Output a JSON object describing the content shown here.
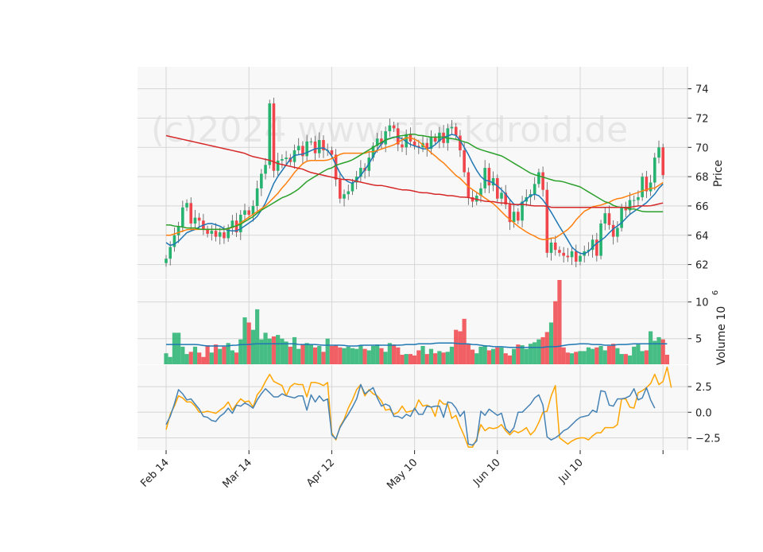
{
  "watermark": "(c)2024 www.stockdroid.de",
  "colors": {
    "up": "#26b370",
    "down": "#f0454a",
    "panel_bg": "#f8f8f8",
    "grid": "#d6d6d6",
    "ma_fast": "#1f77b4",
    "ma_mid": "#ff7f0e",
    "ma_slow": "#2ca02c",
    "ma_long": "#d62728",
    "vol_ma": "#1f77b4",
    "osc_a": "#4682b4",
    "osc_b": "#ffa500"
  },
  "chart_data": [
    {
      "type": "candlestick",
      "ylabel": "Price",
      "ylim": [
        61,
        75.5
      ],
      "yticks": [
        "62",
        "64",
        "66",
        "68",
        "70",
        "72",
        "74"
      ],
      "xticks": [
        "Feb 14",
        "Mar 14",
        "Apr 12",
        "May 10",
        "Jun 10",
        "Jul 10",
        ""
      ],
      "grid": true,
      "close": [
        62.4,
        63.2,
        64.0,
        64.6,
        65.9,
        66.2,
        64.8,
        65.2,
        65.0,
        64.4,
        64.1,
        64.3,
        63.9,
        64.2,
        63.8,
        64.5,
        65.0,
        64.2,
        65.4,
        65.7,
        65.4,
        66.0,
        67.2,
        68.2,
        68.8,
        73.0,
        68.4,
        69.1,
        69.2,
        69.3,
        69.0,
        69.8,
        70.1,
        69.4,
        70.4,
        70.4,
        69.6,
        70.5,
        69.8,
        69.8,
        69.5,
        67.8,
        66.5,
        66.8,
        67.0,
        67.6,
        68.0,
        68.6,
        68.4,
        69.3,
        70.1,
        70.6,
        70.2,
        71.1,
        71.5,
        71.3,
        70.2,
        70.0,
        70.9,
        70.4,
        70.1,
        70.0,
        70.3,
        69.9,
        70.7,
        70.4,
        71.0,
        70.3,
        71.3,
        71.4,
        70.8,
        69.8,
        68.3,
        66.6,
        66.3,
        66.7,
        67.2,
        68.6,
        67.4,
        67.9,
        66.5,
        66.9,
        66.1,
        64.9,
        65.6,
        65.0,
        66.3,
        66.6,
        66.8,
        67.5,
        68.3,
        67.1,
        62.8,
        63.5,
        63.0,
        62.8,
        62.6,
        62.5,
        62.9,
        62.2,
        62.6,
        62.9,
        63.0,
        63.7,
        62.6,
        64.8,
        65.5,
        64.7,
        63.9,
        64.5,
        65.9,
        65.7,
        66.4,
        66.4,
        66.6,
        68.0,
        67.0,
        67.6,
        69.3,
        70.0,
        68.1
      ],
      "series": [
        {
          "name": "",
          "values": [
            63.5,
            63.3,
            63.4,
            63.6,
            63.9,
            64.2,
            64.3,
            64.4,
            64.6,
            64.7,
            64.8,
            64.8,
            64.7,
            64.6,
            64.4,
            64.3,
            64.3,
            64.3,
            64.5,
            64.7,
            64.9,
            65.1,
            65.4,
            65.9,
            66.4,
            67.2,
            67.8,
            68.2,
            68.6,
            69.0,
            69.4,
            69.5,
            69.5,
            69.6,
            69.7,
            69.9,
            69.9,
            70.0,
            69.9,
            69.6,
            69.0,
            68.4,
            67.9,
            67.7,
            67.5,
            67.7,
            68.0,
            68.4,
            68.8,
            69.3,
            69.8,
            70.2,
            70.5,
            70.6,
            70.7,
            70.7,
            70.6,
            70.4,
            70.2,
            70.1,
            70.0,
            69.9,
            69.9,
            70.0,
            70.2,
            70.5,
            70.7,
            70.8,
            70.9,
            70.8,
            70.4,
            69.9,
            69.4,
            68.8,
            68.3,
            67.9,
            67.7,
            67.7,
            67.5,
            67.3,
            67.0,
            66.7,
            66.3,
            66.0,
            66.1,
            66.3,
            66.6,
            66.8,
            66.8,
            66.6,
            66.2,
            65.8,
            65.3,
            64.8,
            64.3,
            63.9,
            63.3,
            63.0,
            62.8,
            62.7,
            62.8,
            63.1,
            63.4,
            63.6,
            63.8,
            64.1,
            64.4,
            64.6,
            64.8,
            65.1,
            65.4,
            65.6,
            65.8,
            66.0,
            66.2,
            66.5,
            66.8,
            67.2,
            67.5
          ]
        },
        {
          "name": "",
          "values": [
            64.0,
            64.0,
            64.1,
            64.2,
            64.3,
            64.4,
            64.4,
            64.4,
            64.4,
            64.4,
            64.4,
            64.4,
            64.4,
            64.4,
            64.4,
            64.5,
            64.6,
            64.8,
            65.0,
            65.2,
            65.4,
            65.6,
            65.8,
            66.0,
            66.3,
            66.6,
            66.9,
            67.3,
            67.6,
            68.0,
            68.4,
            68.7,
            69.0,
            69.1,
            69.1,
            69.1,
            69.1,
            69.1,
            69.2,
            69.3,
            69.5,
            69.6,
            69.6,
            69.6,
            69.6,
            69.6,
            69.6,
            69.7,
            69.7,
            69.8,
            69.9,
            70.0,
            70.1,
            70.2,
            70.4,
            70.6,
            70.7,
            70.6,
            70.5,
            70.3,
            70.0,
            69.7,
            69.5,
            69.2,
            69.0,
            68.7,
            68.4,
            68.1,
            67.9,
            67.6,
            67.3,
            67.1,
            66.9,
            66.7,
            66.5,
            66.3,
            66.1,
            65.8,
            65.5,
            65.2,
            65.0,
            64.7,
            64.5,
            64.3,
            64.1,
            64.0,
            63.8,
            63.7,
            63.7,
            63.8,
            63.8,
            64.0,
            64.2,
            64.4,
            64.7,
            65.1,
            65.4,
            65.7,
            65.8,
            66.0,
            66.0,
            66.1,
            66.2,
            66.3,
            66.5,
            66.5,
            66.6,
            66.7,
            66.8,
            66.9,
            67.0,
            67.1,
            67.2,
            67.2,
            67.4,
            67.6
          ]
        },
        {
          "name": "",
          "values": [
            64.7,
            64.7,
            64.6,
            64.6,
            64.5,
            64.5,
            64.5,
            64.4,
            64.4,
            64.4,
            64.4,
            64.4,
            64.4,
            64.5,
            64.6,
            64.7,
            64.9,
            65.1,
            65.3,
            65.6,
            65.8,
            66.0,
            66.2,
            66.4,
            66.6,
            66.7,
            66.9,
            67.1,
            67.4,
            67.7,
            67.9,
            68.1,
            68.3,
            68.5,
            68.6,
            68.8,
            68.9,
            69.0,
            69.1,
            69.3,
            69.5,
            69.7,
            69.9,
            70.1,
            70.3,
            70.5,
            70.6,
            70.7,
            70.8,
            70.8,
            70.9,
            70.9,
            70.8,
            70.8,
            70.7,
            70.7,
            70.7,
            70.7,
            70.6,
            70.6,
            70.5,
            70.4,
            70.3,
            70.1,
            69.9,
            69.8,
            69.7,
            69.6,
            69.5,
            69.4,
            69.2,
            69.0,
            68.8,
            68.6,
            68.4,
            68.2,
            68.1,
            68.0,
            67.9,
            67.8,
            67.7,
            67.7,
            67.6,
            67.5,
            67.4,
            67.3,
            67.1,
            66.9,
            66.7,
            66.5,
            66.3,
            66.2,
            66.0,
            65.9,
            65.9,
            65.8,
            65.8,
            65.7,
            65.6,
            65.6,
            65.6,
            65.6,
            65.6
          ]
        },
        {
          "name": "",
          "values": [
            70.8,
            70.7,
            70.6,
            70.5,
            70.4,
            70.3,
            70.2,
            70.1,
            70.0,
            69.9,
            69.8,
            69.7,
            69.6,
            69.4,
            69.3,
            69.2,
            69.1,
            68.9,
            68.8,
            68.7,
            68.6,
            68.5,
            68.3,
            68.2,
            68.1,
            68.0,
            67.9,
            67.8,
            67.8,
            67.7,
            67.6,
            67.5,
            67.4,
            67.4,
            67.3,
            67.2,
            67.1,
            67.1,
            67.0,
            66.9,
            66.9,
            66.8,
            66.8,
            66.7,
            66.7,
            66.6,
            66.6,
            66.5,
            66.4,
            66.3,
            66.3,
            66.2,
            66.2,
            66.1,
            66.1,
            66.1,
            66.0,
            66.0,
            66.0,
            65.9,
            65.9,
            65.9,
            65.9,
            65.9,
            65.9,
            65.9,
            65.9,
            65.9,
            65.9,
            65.9,
            65.9,
            65.9,
            66.0,
            66.0,
            66.0,
            66.1,
            66.2
          ]
        }
      ]
    },
    {
      "type": "bar",
      "ylabel": "Volume",
      "ylabel_exponent": "10",
      "ylabel_exponent_power": "6",
      "ylim": [
        1.5,
        13
      ],
      "yticks": [
        "5",
        "10"
      ],
      "values": [
        3.0,
        2.5,
        5.8,
        5.8,
        3.9,
        2.9,
        3.2,
        3.9,
        3.1,
        2.5,
        4.1,
        3.1,
        4.2,
        3.6,
        3.9,
        4.4,
        3.4,
        3.1,
        4.9,
        7.9,
        7.2,
        6.2,
        9.0,
        4.9,
        5.8,
        5.0,
        5.3,
        5.5,
        5.0,
        4.6,
        3.9,
        5.2,
        3.6,
        4.2,
        4.4,
        4.2,
        3.8,
        4.0,
        3.2,
        5.0,
        4.0,
        4.1,
        3.8,
        3.7,
        3.9,
        3.7,
        3.6,
        4.1,
        3.6,
        3.4,
        4.0,
        4.2,
        3.7,
        3.2,
        4.4,
        4.2,
        3.8,
        2.8,
        2.9,
        2.9,
        2.7,
        3.4,
        4.0,
        2.9,
        3.6,
        3.0,
        3.3,
        3.1,
        3.2,
        3.9,
        6.2,
        6.0,
        7.7,
        4.3,
        3.5,
        3.0,
        3.9,
        4.1,
        3.4,
        3.6,
        3.8,
        3.8,
        3.0,
        2.7,
        3.6,
        4.2,
        4.1,
        3.6,
        4.3,
        4.5,
        4.9,
        5.2,
        5.9,
        7.2,
        10.1,
        13.0,
        3.8,
        3.1,
        3.0,
        3.2,
        3.3,
        3.3,
        3.8,
        3.6,
        3.8,
        4.0,
        3.4,
        4.0,
        4.3,
        3.7,
        2.9,
        2.9,
        2.7,
        3.9,
        4.2,
        3.3,
        3.4,
        6.0,
        4.7,
        5.2,
        4.9,
        2.8
      ],
      "series": [
        {
          "name": "",
          "values": [
            4.2,
            4.2,
            4.2,
            4.2,
            4.2,
            4.2,
            4.2,
            4.2,
            4.1,
            4.0,
            4.0,
            4.0,
            4.0,
            4.0,
            4.0,
            4.1,
            4.1,
            4.2,
            4.2,
            4.2,
            4.3,
            4.3,
            4.3,
            4.3,
            4.3,
            4.3,
            4.3,
            4.3,
            4.3,
            4.3,
            4.2,
            4.2,
            4.2,
            4.2,
            4.2,
            4.1,
            4.1,
            4.1,
            4.1,
            4.1,
            4.1,
            4.0,
            4.0,
            4.0,
            4.1,
            4.1,
            4.1,
            4.1,
            4.1,
            4.1,
            4.1,
            4.1,
            4.1,
            4.1,
            4.2,
            4.2,
            4.2,
            4.3,
            4.3,
            4.3,
            4.3,
            4.4,
            4.4,
            4.4,
            4.4,
            4.4,
            4.3,
            4.3,
            4.3,
            4.2,
            4.2,
            4.1,
            4.0,
            4.0,
            3.9,
            3.9,
            3.9,
            3.8,
            3.8,
            3.8,
            3.8,
            3.8,
            3.8,
            3.8,
            3.8,
            3.8,
            3.9,
            3.9,
            3.9,
            4.0,
            4.1,
            4.2,
            4.2,
            4.3,
            4.3,
            4.3,
            4.2,
            4.2,
            4.2,
            4.1,
            4.1,
            4.1,
            4.2,
            4.2,
            4.2,
            4.3,
            4.3,
            4.3,
            4.3,
            4.3,
            4.3,
            4.3,
            4.3,
            4.3
          ]
        }
      ]
    },
    {
      "type": "line",
      "ylim": [
        -3.7,
        4.6
      ],
      "yticks": [
        "−2.5",
        "0.0",
        "2.5"
      ],
      "series": [
        {
          "name": "",
          "values": [
            -1.2,
            -0.4,
            0.8,
            2.2,
            1.8,
            1.2,
            1.3,
            0.8,
            0.3,
            -0.4,
            -0.5,
            -0.8,
            -0.9,
            -0.4,
            -0.1,
            0.4,
            -0.1,
            0.7,
            0.6,
            0.9,
            0.7,
            0.4,
            1.2,
            1.8,
            2.3,
            1.9,
            1.5,
            1.5,
            1.8,
            1.6,
            1.5,
            1.4,
            1.6,
            1.6,
            0.2,
            1.7,
            1.0,
            1.6,
            1.1,
            1.3,
            -2.2,
            -2.6,
            -1.5,
            -0.8,
            -0.2,
            0.5,
            1.3,
            2.7,
            1.8,
            2.1,
            2.4,
            1.4,
            0.6,
            0.8,
            0.6,
            -0.4,
            -0.4,
            -0.6,
            -0.2,
            -0.4,
            0.4,
            -0.2,
            -0.2,
            0.6,
            0.5,
            0.6,
            0.6,
            -0.5,
            1.0,
            0.9,
            0.4,
            -0.4,
            0.1,
            -3.1,
            -3.2,
            -2.8,
            0.1,
            -0.3,
            0.3,
            0.0,
            -0.3,
            -0.1,
            -1.6,
            -2.0,
            -1.5,
            0.0,
            0.0,
            0.4,
            0.8,
            1.4,
            1.7,
            0.7,
            -2.4,
            -2.7,
            -2.5,
            -2.2,
            -1.8,
            -1.6,
            -1.2,
            -0.8,
            -0.5,
            -0.4,
            -0.3,
            0.2,
            0.0,
            2.1,
            2.0,
            0.7,
            0.6,
            1.3,
            1.3,
            1.4,
            1.6,
            2.3,
            1.2,
            1.4,
            2.4,
            1.2,
            0.4
          ]
        },
        {
          "name": "",
          "values": [
            -1.7,
            -0.2,
            0.6,
            1.6,
            1.4,
            1.0,
            1.0,
            0.6,
            0.0,
            0.0,
            0.1,
            0.0,
            -0.1,
            0.2,
            0.5,
            1.0,
            0.2,
            0.8,
            1.3,
            1.0,
            1.1,
            0.5,
            1.7,
            2.2,
            3.0,
            3.7,
            3.0,
            2.8,
            2.6,
            1.6,
            2.5,
            2.8,
            2.7,
            2.7,
            1.5,
            2.9,
            2.9,
            2.8,
            2.6,
            2.9,
            -2.0,
            -2.7,
            -1.4,
            -0.7,
            0.4,
            1.2,
            2.2,
            2.7,
            1.6,
            2.2,
            1.8,
            1.6,
            1.1,
            0.2,
            0.3,
            -0.2,
            0.0,
            0.6,
            0.0,
            0.1,
            0.2,
            1.2,
            0.6,
            0.7,
            0.5,
            -0.4,
            1.2,
            0.8,
            0.8,
            -0.6,
            -0.3,
            -1.4,
            -2.3,
            -3.4,
            -3.4,
            -2.6,
            -1.2,
            -1.8,
            -1.5,
            -1.6,
            -1.5,
            -1.2,
            -1.8,
            -2.2,
            -1.8,
            -2.0,
            -1.8,
            -1.5,
            -2.2,
            -1.8,
            -1.0,
            0.0,
            0.1,
            1.6,
            2.6,
            -2.5,
            -2.8,
            -3.1,
            -2.8,
            -2.6,
            -2.5,
            -2.5,
            -2.7,
            -2.3,
            -2.0,
            -2.0,
            -1.5,
            -1.5,
            -1.5,
            -1.2,
            1.3,
            1.3,
            0.5,
            0.4,
            1.9,
            2.1,
            2.4,
            2.8,
            3.7,
            2.7,
            3.0,
            4.4,
            2.4
          ]
        }
      ]
    }
  ]
}
